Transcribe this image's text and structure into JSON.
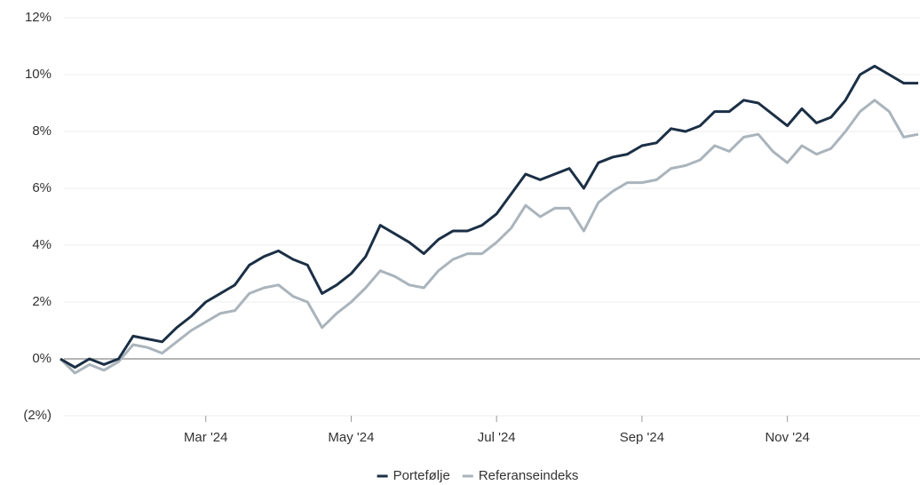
{
  "chart_data": {
    "type": "line",
    "categories": [
      null,
      null,
      null,
      null,
      null,
      null,
      null,
      null,
      null,
      null,
      "Mar '24",
      null,
      null,
      null,
      null,
      null,
      null,
      null,
      null,
      null,
      "May '24",
      null,
      null,
      null,
      null,
      null,
      null,
      null,
      null,
      null,
      "Jul '24",
      null,
      null,
      null,
      null,
      null,
      null,
      null,
      null,
      null,
      "Sep '24",
      null,
      null,
      null,
      null,
      null,
      null,
      null,
      null,
      null,
      "Nov '24",
      null,
      null,
      null,
      null,
      null,
      null,
      null,
      null,
      null
    ],
    "series": [
      {
        "name": "Portefølje",
        "color": "#1b2f45",
        "values": [
          0,
          -0.3,
          0.0,
          -0.2,
          0.0,
          0.8,
          0.7,
          0.6,
          1.1,
          1.5,
          2.0,
          2.3,
          2.6,
          3.3,
          3.6,
          3.8,
          3.5,
          3.3,
          2.3,
          2.6,
          3.0,
          3.6,
          4.7,
          4.4,
          4.1,
          3.7,
          4.2,
          4.5,
          4.5,
          4.7,
          5.1,
          5.8,
          6.5,
          6.3,
          6.5,
          6.7,
          6.0,
          6.9,
          7.1,
          7.2,
          7.5,
          7.6,
          8.1,
          8.0,
          8.2,
          8.7,
          8.7,
          9.1,
          9.0,
          8.6,
          8.2,
          8.8,
          8.3,
          8.5,
          9.1,
          10.0,
          10.3,
          10.0,
          9.7,
          9.7
        ]
      },
      {
        "name": "Referanseindeks",
        "color": "#aab4bc",
        "values": [
          0,
          -0.5,
          -0.2,
          -0.4,
          -0.1,
          0.5,
          0.4,
          0.2,
          0.6,
          1.0,
          1.3,
          1.6,
          1.7,
          2.3,
          2.5,
          2.6,
          2.2,
          2.0,
          1.1,
          1.6,
          2.0,
          2.5,
          3.1,
          2.9,
          2.6,
          2.5,
          3.1,
          3.5,
          3.7,
          3.7,
          4.1,
          4.6,
          5.4,
          5.0,
          5.3,
          5.3,
          4.5,
          5.5,
          5.9,
          6.2,
          6.2,
          6.3,
          6.7,
          6.8,
          7.0,
          7.5,
          7.3,
          7.8,
          7.9,
          7.3,
          6.9,
          7.5,
          7.2,
          7.4,
          8.0,
          8.7,
          9.1,
          8.7,
          7.8,
          7.9
        ]
      }
    ],
    "ylim": [
      -2,
      12
    ],
    "yticks": [
      {
        "value": -2,
        "label": "(2%)"
      },
      {
        "value": 0,
        "label": "0%"
      },
      {
        "value": 2,
        "label": "2%"
      },
      {
        "value": 4,
        "label": "4%"
      },
      {
        "value": 6,
        "label": "6%"
      },
      {
        "value": 8,
        "label": "8%"
      },
      {
        "value": 10,
        "label": "10%"
      },
      {
        "value": 12,
        "label": "12%"
      }
    ],
    "grid": true,
    "legend": "bottom"
  }
}
